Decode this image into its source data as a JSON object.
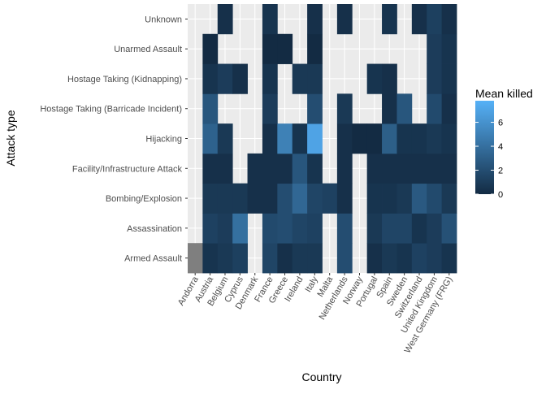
{
  "chart_data": {
    "type": "heatmap",
    "title": "",
    "xlabel": "Country",
    "ylabel": "Attack type",
    "x": [
      "Andorra",
      "Austria",
      "Belgium",
      "Cyprus",
      "Denmark",
      "France",
      "Greece",
      "Ireland",
      "Italy",
      "Malta",
      "Netherlands",
      "Norway",
      "Portugal",
      "Spain",
      "Sweden",
      "Switzerland",
      "United Kingdom",
      "West Germany (FRG)"
    ],
    "y": [
      "Armed Assault",
      "Assassination",
      "Bombing/Explosion",
      "Facility/Infrastructure Attack",
      "Hijacking",
      "Hostage Taking (Barricade Incident)",
      "Hostage Taking (Kidnapping)",
      "Unarmed Assault",
      "Unknown"
    ],
    "values": [
      [
        null,
        0.5,
        0.8,
        1.2,
        null,
        1.5,
        0.3,
        0.8,
        0.8,
        null,
        2.0,
        null,
        0.3,
        0.8,
        0.5,
        1.3,
        1.0,
        0.5
      ],
      [
        null,
        1.3,
        1.0,
        4.0,
        null,
        1.8,
        2.0,
        1.5,
        1.3,
        null,
        2.0,
        null,
        0.8,
        1.5,
        1.5,
        0.5,
        1.0,
        2.2
      ],
      [
        null,
        0.8,
        0.8,
        0.8,
        0.3,
        0.3,
        2.0,
        3.5,
        1.5,
        1.3,
        0.3,
        null,
        0.5,
        0.5,
        0.8,
        2.7,
        1.8,
        0.8
      ],
      [
        null,
        0.3,
        0.3,
        null,
        0.3,
        0.3,
        0.3,
        2.5,
        0.5,
        null,
        0.3,
        null,
        0.3,
        0.3,
        0.3,
        0.3,
        0.3,
        0.3
      ],
      [
        null,
        3.2,
        0.8,
        null,
        null,
        0.3,
        5.0,
        0.5,
        7.0,
        null,
        0.3,
        0.0,
        0.0,
        3.0,
        0.5,
        0.5,
        0.8,
        0.5
      ],
      [
        null,
        2.5,
        null,
        null,
        null,
        1.0,
        null,
        null,
        2.0,
        null,
        0.8,
        null,
        null,
        0.3,
        2.5,
        null,
        1.8,
        0.3
      ],
      [
        null,
        0.5,
        1.0,
        0.3,
        null,
        0.5,
        null,
        0.8,
        0.8,
        null,
        null,
        null,
        0.5,
        0.3,
        null,
        null,
        1.0,
        0.5
      ],
      [
        null,
        0.0,
        null,
        null,
        null,
        0.0,
        0.0,
        null,
        0.0,
        null,
        null,
        null,
        null,
        null,
        null,
        null,
        1.0,
        0.5
      ],
      [
        null,
        null,
        0.3,
        null,
        null,
        0.5,
        null,
        null,
        0.3,
        null,
        0.3,
        null,
        null,
        0.5,
        null,
        0.3,
        1.2,
        0.3
      ]
    ],
    "na_cells": [
      [
        0,
        0
      ]
    ],
    "legend": {
      "title": "Mean killed",
      "ticks": [
        0,
        2,
        4,
        6
      ],
      "range": [
        0,
        7.8
      ],
      "position": "right"
    },
    "colors": {
      "low": "#132b43",
      "high": "#56b1f7",
      "na": "#7f7f7f",
      "panel": "#ebebeb",
      "grid": "#ffffff"
    }
  }
}
